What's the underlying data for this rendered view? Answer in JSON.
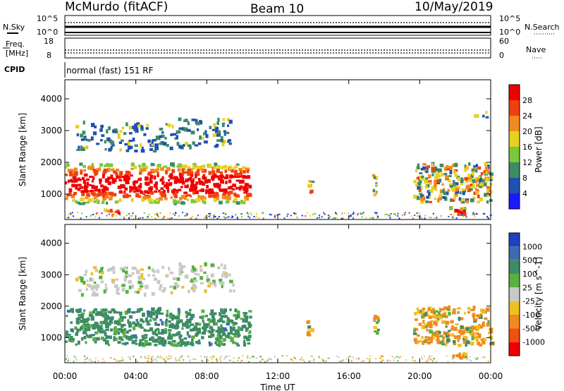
{
  "header": {
    "station": "McMurdo (fitACF)",
    "beam": "Beam 10",
    "date": "10/May/2019"
  },
  "meta_panels": {
    "nsky_label": "N.Sky",
    "nsearch_label": "N.Search",
    "nsky_ticks": [
      "10^5",
      "10^0"
    ],
    "nsearch_ticks": [
      "10^5",
      "10^0"
    ],
    "freq_label_1": "Freq.",
    "freq_label_2": "[MHz]",
    "freq_ticks": [
      "18",
      "8"
    ],
    "nave_label": "Nave",
    "nave_ticks": [
      "60",
      "0"
    ],
    "cpid_label": "CPID",
    "cpid_value": "normal (fast) 151 RF"
  },
  "chart_data": [
    {
      "type": "heatmap",
      "name": "power",
      "ylabel": "Slant Range [km]",
      "ylim": [
        200,
        4600
      ],
      "yticks": [
        "1000",
        "2000",
        "3000",
        "4000"
      ],
      "colorbar_label": "Power [dB]",
      "colorbar_ticks": [
        "4",
        "8",
        "12",
        "16",
        "20",
        "24",
        "28"
      ],
      "colors": [
        "#1a1aff",
        "#2050b0",
        "#3c8c64",
        "#7ac83c",
        "#e8d020",
        "#f08a20",
        "#f04010",
        "#f00000"
      ],
      "regions": [
        {
          "t0": 0.0,
          "t1": 10.4,
          "r0": 650,
          "r1": 1900,
          "level": "high"
        },
        {
          "t0": 0.5,
          "t1": 6.0,
          "r0": 2300,
          "r1": 3200,
          "level": "low"
        },
        {
          "t0": 6.0,
          "t1": 9.5,
          "r0": 2400,
          "r1": 3300,
          "level": "low"
        },
        {
          "t0": 13.6,
          "t1": 13.9,
          "r0": 1000,
          "r1": 1600,
          "level": "mid"
        },
        {
          "t0": 17.3,
          "t1": 17.6,
          "r0": 900,
          "r1": 1600,
          "level": "mid"
        },
        {
          "t0": 19.6,
          "t1": 24.0,
          "r0": 700,
          "r1": 1900,
          "level": "mid"
        },
        {
          "t0": 2.1,
          "t1": 3.0,
          "r0": 250,
          "r1": 450,
          "level": "high"
        },
        {
          "t0": 21.6,
          "t1": 22.6,
          "r0": 250,
          "r1": 500,
          "level": "high"
        },
        {
          "t0": 0.0,
          "t1": 24.0,
          "r0": 200,
          "r1": 400,
          "level": "ground"
        },
        {
          "t0": 23.0,
          "t1": 23.8,
          "r0": 3300,
          "r1": 3600,
          "level": "low"
        }
      ]
    },
    {
      "type": "heatmap",
      "name": "velocity",
      "xlabel": "Time UT",
      "ylabel": "Slant Range [km]",
      "ylim": [
        200,
        4600
      ],
      "yticks": [
        "1000",
        "2000",
        "3000",
        "4000"
      ],
      "xlim": [
        0,
        24
      ],
      "xticks": [
        "00:00",
        "04:00",
        "08:00",
        "12:00",
        "16:00",
        "20:00",
        "00:00"
      ],
      "colorbar_label": "Velocity [m s^-1]",
      "colorbar_ticks": [
        "1000",
        "500",
        "100",
        "25",
        "-25",
        "-100",
        "-500",
        "-1000"
      ],
      "colors": [
        "#2040c0",
        "#3c6cb0",
        "#3c8c64",
        "#58b040",
        "#c8c8c8",
        "#f0c020",
        "#f08a20",
        "#f05010",
        "#f00000"
      ],
      "regions": [
        {
          "t0": 0.0,
          "t1": 10.4,
          "r0": 700,
          "r1": 1850,
          "level": "slow"
        },
        {
          "t0": 0.5,
          "t1": 6.0,
          "r0": 2300,
          "r1": 3200,
          "level": "grey"
        },
        {
          "t0": 6.0,
          "t1": 9.5,
          "r0": 2400,
          "r1": 3300,
          "level": "grey"
        },
        {
          "t0": 13.6,
          "t1": 13.9,
          "r0": 1000,
          "r1": 1600,
          "level": "neg"
        },
        {
          "t0": 17.3,
          "t1": 17.6,
          "r0": 900,
          "r1": 1600,
          "level": "neg"
        },
        {
          "t0": 19.6,
          "t1": 24.0,
          "r0": 700,
          "r1": 1900,
          "level": "neg"
        },
        {
          "t0": 21.6,
          "t1": 22.6,
          "r0": 250,
          "r1": 500,
          "level": "neg"
        },
        {
          "t0": 0.0,
          "t1": 24.0,
          "r0": 200,
          "r1": 400,
          "level": "ground"
        }
      ]
    }
  ]
}
